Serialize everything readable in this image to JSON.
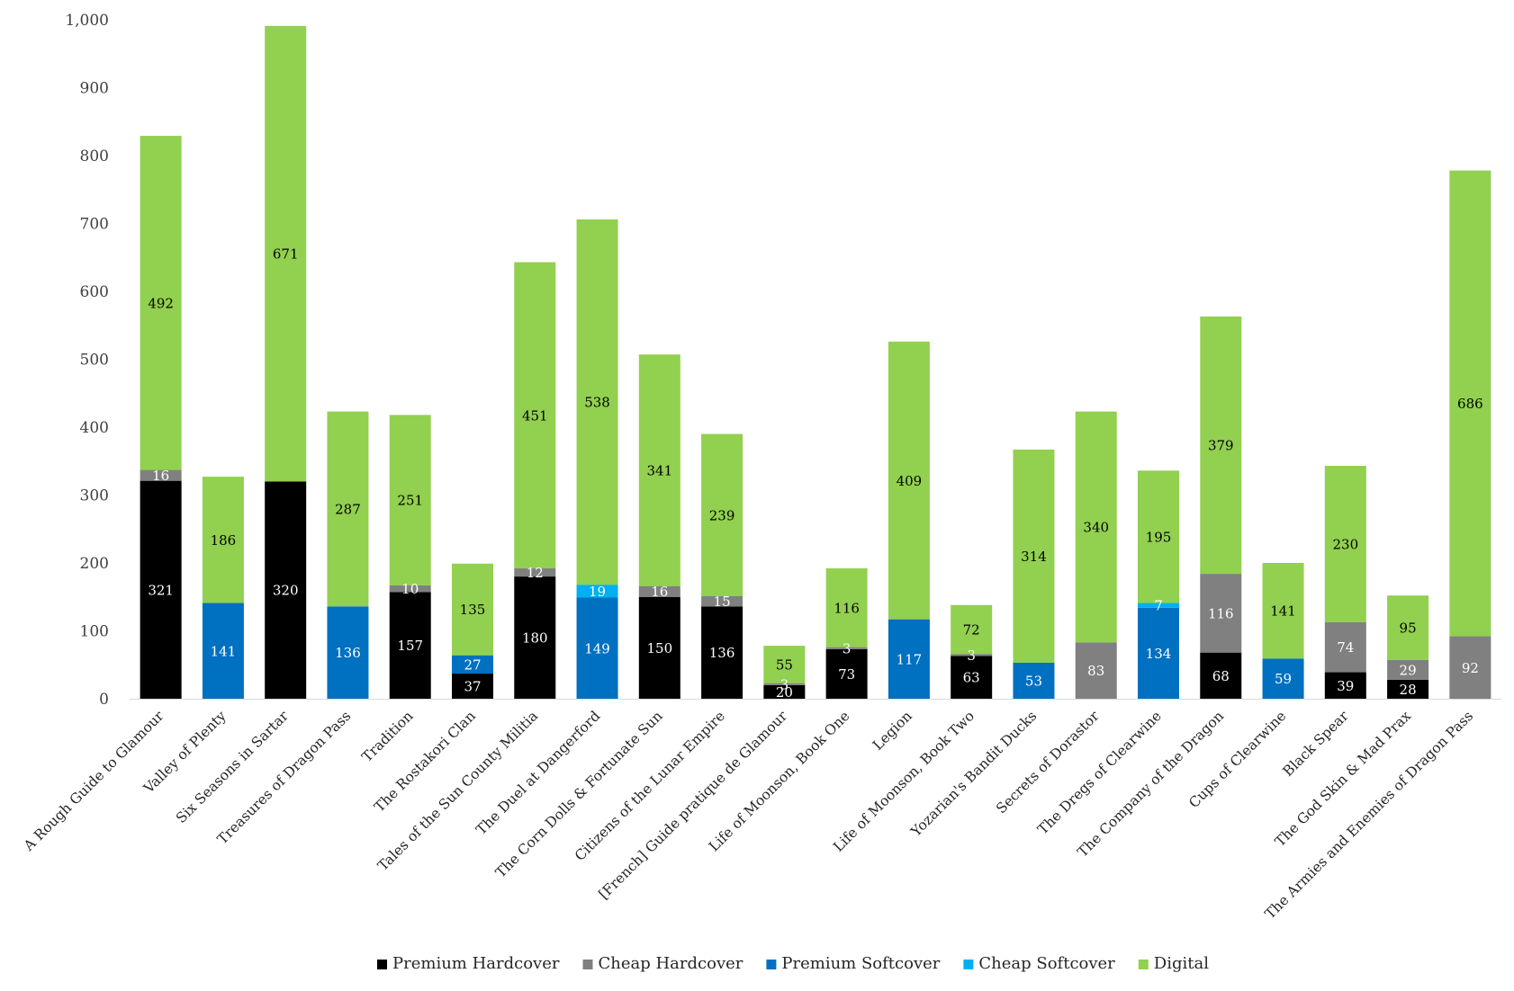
{
  "chart_data": {
    "type": "bar",
    "stacked": true,
    "ylim": [
      0,
      1000
    ],
    "yticks": [
      0,
      100,
      200,
      300,
      400,
      500,
      600,
      700,
      800,
      900,
      1000
    ],
    "ytick_labels": [
      "0",
      "100",
      "200",
      "300",
      "400",
      "500",
      "600",
      "700",
      "800",
      "900",
      "1,000"
    ],
    "grid": false,
    "legend_position": "bottom",
    "categories": [
      "A Rough Guide to Glamour",
      "Valley of Plenty",
      "Six Seasons in Sartar",
      "Treasures of Dragon Pass",
      "Tradition",
      "The Rostakori Clan",
      "Tales of the Sun County Militia",
      "The Duel at Dangerford",
      "The Corn Dolls & Fortunate Sun",
      "Citizens of the Lunar Empire",
      "[French] Guide pratique de Glamour",
      "Life of Moonson, Book One",
      "Legion",
      "Life of Moonson, Book Two",
      "Yozarian's Bandit Ducks",
      "Secrets of Dorastor",
      "The Dregs of Clearwine",
      "The Company of the Dragon",
      "Cups of Clearwine",
      "Black Spear",
      "The God Skin & Mad Prax",
      "The Armies and Enemies of Dragon Pass"
    ],
    "series": [
      {
        "name": "Premium Hardcover",
        "color": "#000000",
        "label_color": "#ffffff",
        "values": [
          321,
          0,
          320,
          0,
          157,
          37,
          180,
          0,
          150,
          136,
          20,
          73,
          0,
          63,
          0,
          0,
          0,
          68,
          0,
          39,
          28,
          0
        ]
      },
      {
        "name": "Cheap Hardcover",
        "color": "#808080",
        "label_color": "#ffffff",
        "values": [
          16,
          0,
          0,
          0,
          10,
          0,
          12,
          0,
          16,
          15,
          3,
          3,
          0,
          3,
          0,
          83,
          0,
          116,
          0,
          74,
          29,
          92
        ]
      },
      {
        "name": "Premium Softcover",
        "color": "#0070c0",
        "label_color": "#ffffff",
        "values": [
          0,
          141,
          0,
          136,
          0,
          27,
          0,
          149,
          0,
          0,
          0,
          0,
          117,
          0,
          53,
          0,
          134,
          0,
          59,
          0,
          0,
          0
        ]
      },
      {
        "name": "Cheap Softcover",
        "color": "#00b0f0",
        "label_color": "#ffffff",
        "values": [
          0,
          0,
          0,
          0,
          0,
          0,
          0,
          19,
          0,
          0,
          0,
          0,
          0,
          0,
          0,
          0,
          7,
          0,
          0,
          0,
          0,
          0
        ]
      },
      {
        "name": "Digital",
        "color": "#92d050",
        "label_color": "#000000",
        "values": [
          492,
          186,
          671,
          287,
          251,
          135,
          451,
          538,
          341,
          239,
          55,
          116,
          409,
          72,
          314,
          340,
          195,
          379,
          141,
          230,
          95,
          686
        ]
      }
    ]
  }
}
